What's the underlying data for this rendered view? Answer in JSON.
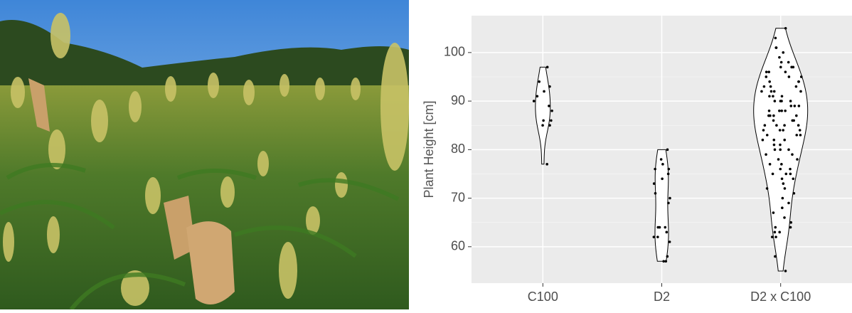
{
  "chart_data": {
    "type": "violin",
    "y_label": "Plant Height [cm]",
    "ylim": [
      52.5,
      107.6
    ],
    "yticks": [
      60,
      70,
      80,
      90,
      100
    ],
    "grid": true,
    "panel_color": "#ebebeb",
    "violin_fill": "#ffffff",
    "point_color": "#000000",
    "series": [
      {
        "name": "C100",
        "values": [
          97,
          94,
          93,
          92,
          91,
          90,
          89,
          88,
          86,
          86,
          85,
          85,
          77
        ]
      },
      {
        "name": "D2",
        "values": [
          80,
          78,
          77,
          76,
          76,
          75,
          74,
          73,
          71,
          70,
          69,
          64,
          64,
          64,
          63,
          62,
          62,
          61,
          58,
          57,
          57
        ]
      },
      {
        "name": "D2 x C100",
        "values": [
          105,
          103,
          101,
          101,
          100,
          99,
          98,
          98,
          97,
          97,
          97,
          96,
          96,
          96,
          95,
          95,
          95,
          94,
          94,
          94,
          93,
          93,
          93,
          92,
          92,
          92,
          92,
          91,
          91,
          91,
          90,
          90,
          90,
          90,
          89,
          89,
          89,
          88,
          88,
          88,
          88,
          87,
          87,
          87,
          87,
          86,
          86,
          86,
          85,
          85,
          85,
          85,
          84,
          84,
          84,
          84,
          83,
          83,
          83,
          82,
          82,
          82,
          81,
          81,
          80,
          80,
          80,
          79,
          79,
          78,
          78,
          77,
          77,
          76,
          76,
          75,
          75,
          75,
          74,
          74,
          73,
          72,
          72,
          71,
          70,
          69,
          68,
          67,
          66,
          65,
          64,
          64,
          63,
          63,
          62,
          62,
          58,
          55
        ]
      }
    ]
  }
}
